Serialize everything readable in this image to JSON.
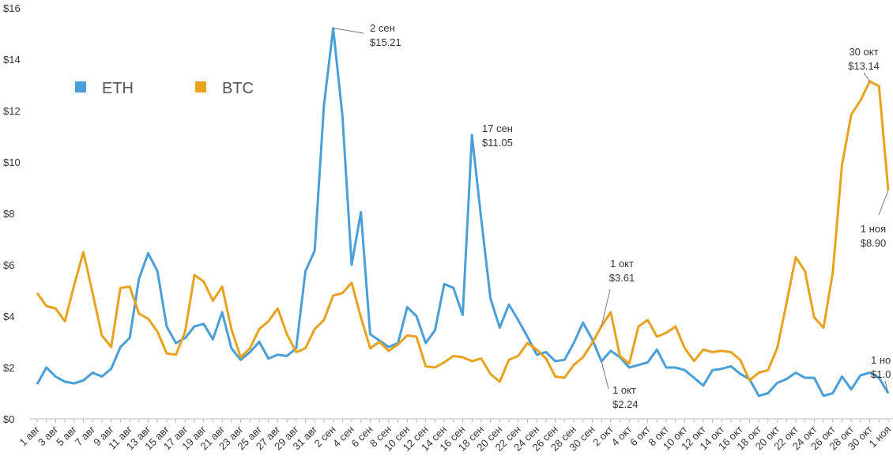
{
  "chart_data": {
    "type": "line",
    "categories": [
      "1 авг",
      null,
      "3 авг",
      null,
      "5 авг",
      null,
      "7 авг",
      null,
      "9 авг",
      null,
      "11 авг",
      null,
      "13 авг",
      null,
      "15 авг",
      null,
      "17 авг",
      null,
      "19 авг",
      null,
      "21 авг",
      null,
      "23 авг",
      null,
      "25 авг",
      null,
      "27 авг",
      null,
      "29 авг",
      null,
      "31 авг",
      null,
      "2 сен",
      null,
      "4 сен",
      null,
      "6 сен",
      null,
      "8 сен",
      null,
      "10 сен",
      null,
      "12 сен",
      null,
      "14 сен",
      null,
      "16 сен",
      null,
      "18 сен",
      null,
      "20 сен",
      null,
      "22 сен",
      null,
      "24 сен",
      null,
      "26 сен",
      null,
      "28 сен",
      null,
      "30 сен",
      null,
      "2 окт",
      null,
      "4 окт",
      null,
      "6 окт",
      null,
      "8 окт",
      null,
      "10 окт",
      null,
      "12 окт",
      null,
      "14 окт",
      null,
      "16 окт",
      null,
      "18 окт",
      null,
      "20 окт",
      null,
      "22 окт",
      null,
      "24 окт",
      null,
      "26 окт",
      null,
      "28 окт",
      null,
      "30 окт",
      null,
      "1 ноя"
    ],
    "series": [
      {
        "name": "ETH",
        "color": "#4a9fd8",
        "values": [
          1.35,
          2.0,
          1.65,
          1.45,
          1.38,
          1.5,
          1.8,
          1.65,
          1.95,
          2.8,
          3.15,
          5.45,
          6.45,
          5.75,
          3.6,
          2.95,
          3.15,
          3.6,
          3.7,
          3.1,
          4.15,
          2.75,
          2.3,
          2.6,
          3.0,
          2.35,
          2.5,
          2.45,
          2.75,
          5.75,
          6.55,
          12.2,
          15.21,
          11.8,
          6.0,
          8.05,
          3.3,
          3.05,
          2.8,
          2.95,
          4.35,
          4.0,
          2.95,
          3.45,
          5.25,
          5.1,
          4.05,
          11.05,
          7.8,
          4.7,
          3.55,
          4.45,
          3.85,
          3.2,
          2.5,
          2.6,
          2.25,
          2.3,
          2.95,
          3.75,
          3.1,
          2.24,
          2.65,
          2.4,
          2.0,
          2.1,
          2.2,
          2.7,
          2.0,
          2.0,
          1.9,
          1.6,
          1.3,
          1.9,
          1.95,
          2.05,
          1.75,
          1.55,
          0.9,
          1.0,
          1.4,
          1.55,
          1.8,
          1.6,
          1.6,
          0.9,
          1.0,
          1.65,
          1.15,
          1.7,
          1.8,
          1.6,
          1.0
        ],
        "point_labels": [
          null,
          null,
          null,
          null,
          null,
          null,
          null,
          null,
          null,
          null,
          null,
          null,
          null,
          null,
          null,
          null,
          null,
          null,
          null,
          null,
          null,
          null,
          null,
          null,
          null,
          null,
          null,
          null,
          null,
          null,
          null,
          null,
          "2 сен",
          null,
          null,
          null,
          null,
          null,
          null,
          null,
          null,
          null,
          null,
          null,
          null,
          null,
          null,
          "17 сен",
          null,
          null,
          null,
          null,
          null,
          null,
          null,
          null,
          null,
          null,
          null,
          null,
          null,
          "1 окт",
          null,
          null,
          null,
          null,
          null,
          null,
          null,
          null,
          null,
          null,
          null,
          null,
          null,
          null,
          null,
          null,
          null,
          null,
          null,
          null,
          null,
          null,
          null,
          null,
          null,
          null,
          null,
          null,
          null,
          null,
          "1 но"
        ],
        "value_labels": [
          null,
          null,
          null,
          null,
          null,
          null,
          null,
          null,
          null,
          null,
          null,
          null,
          null,
          null,
          null,
          null,
          null,
          null,
          null,
          null,
          null,
          null,
          null,
          null,
          null,
          null,
          null,
          null,
          null,
          null,
          null,
          null,
          "$15.21",
          null,
          null,
          null,
          null,
          null,
          null,
          null,
          null,
          null,
          null,
          null,
          null,
          null,
          null,
          "$11.05",
          null,
          null,
          null,
          null,
          null,
          null,
          null,
          null,
          null,
          null,
          null,
          null,
          null,
          "$2.24",
          null,
          null,
          null,
          null,
          null,
          null,
          null,
          null,
          null,
          null,
          null,
          null,
          null,
          null,
          null,
          null,
          null,
          null,
          null,
          null,
          null,
          null,
          null,
          null,
          null,
          null,
          null,
          null,
          null,
          null,
          "$1.0"
        ]
      },
      {
        "name": "BTC",
        "color": "#e8a21f",
        "values": [
          4.9,
          4.4,
          4.3,
          3.8,
          5.2,
          6.5,
          4.9,
          3.25,
          2.8,
          5.1,
          5.15,
          4.1,
          3.9,
          3.4,
          2.55,
          2.5,
          3.4,
          5.6,
          5.35,
          4.6,
          5.15,
          3.5,
          2.4,
          2.75,
          3.5,
          3.8,
          4.3,
          3.3,
          2.6,
          2.75,
          3.5,
          3.85,
          4.8,
          4.9,
          5.3,
          3.95,
          2.75,
          3.0,
          2.65,
          2.9,
          3.25,
          3.2,
          2.05,
          2.0,
          2.2,
          2.45,
          2.4,
          2.25,
          2.35,
          1.75,
          1.45,
          2.3,
          2.45,
          2.95,
          2.7,
          2.35,
          1.65,
          1.6,
          2.1,
          2.4,
          2.95,
          3.61,
          4.15,
          2.45,
          2.15,
          3.6,
          3.85,
          3.2,
          3.35,
          3.6,
          2.75,
          2.25,
          2.7,
          2.6,
          2.65,
          2.6,
          2.3,
          1.5,
          1.8,
          1.9,
          2.75,
          4.5,
          6.3,
          5.75,
          3.95,
          3.55,
          5.7,
          9.9,
          11.85,
          12.4,
          13.14,
          12.95,
          8.9
        ],
        "point_labels": [
          null,
          null,
          null,
          null,
          null,
          null,
          null,
          null,
          null,
          null,
          null,
          null,
          null,
          null,
          null,
          null,
          null,
          null,
          null,
          null,
          null,
          null,
          null,
          null,
          null,
          null,
          null,
          null,
          null,
          null,
          null,
          null,
          null,
          null,
          null,
          null,
          null,
          null,
          null,
          null,
          null,
          null,
          null,
          null,
          null,
          null,
          null,
          null,
          null,
          null,
          null,
          null,
          null,
          null,
          null,
          null,
          null,
          null,
          null,
          null,
          null,
          "1 окт",
          null,
          null,
          null,
          null,
          null,
          null,
          null,
          null,
          null,
          null,
          null,
          null,
          null,
          null,
          null,
          null,
          null,
          null,
          null,
          null,
          null,
          null,
          null,
          null,
          null,
          null,
          null,
          null,
          "30 окт",
          null,
          "1 ноя"
        ],
        "value_labels": [
          null,
          null,
          null,
          null,
          null,
          null,
          null,
          null,
          null,
          null,
          null,
          null,
          null,
          null,
          null,
          null,
          null,
          null,
          null,
          null,
          null,
          null,
          null,
          null,
          null,
          null,
          null,
          null,
          null,
          null,
          null,
          null,
          null,
          null,
          null,
          null,
          null,
          null,
          null,
          null,
          null,
          null,
          null,
          null,
          null,
          null,
          null,
          null,
          null,
          null,
          null,
          null,
          null,
          null,
          null,
          null,
          null,
          null,
          null,
          null,
          null,
          "$3.61",
          null,
          null,
          null,
          null,
          null,
          null,
          null,
          null,
          null,
          null,
          null,
          null,
          null,
          null,
          null,
          null,
          null,
          null,
          null,
          null,
          null,
          null,
          null,
          null,
          null,
          null,
          null,
          null,
          "$13.14",
          null,
          "$8.90"
        ]
      }
    ],
    "ylim": [
      0,
      16
    ],
    "yticks": [
      {
        "value": 0,
        "label": "$0"
      },
      {
        "value": 2,
        "label": "$2"
      },
      {
        "value": 4,
        "label": "$4"
      },
      {
        "value": 6,
        "label": "$6"
      },
      {
        "value": 8,
        "label": "$8"
      },
      {
        "value": 10,
        "label": "$10"
      },
      {
        "value": 12,
        "label": "$12"
      },
      {
        "value": 14,
        "label": "$14"
      },
      {
        "value": 16,
        "label": "$16"
      }
    ],
    "grid": false
  }
}
